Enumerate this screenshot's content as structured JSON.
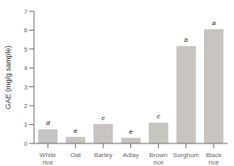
{
  "chart_data": {
    "type": "bar",
    "categories": [
      "White rice",
      "Oat",
      "Barley",
      "Adlay",
      "Brown rice",
      "Sorghum",
      "Black rice"
    ],
    "values": [
      0.75,
      0.35,
      1.02,
      0.3,
      1.1,
      5.15,
      6.05
    ],
    "annotations": [
      "d",
      "e",
      "c",
      "e",
      "c",
      "b",
      "a"
    ],
    "color": "#c8c4c0",
    "ylabel": "GAE (mg/g sample)",
    "ylim": [
      0,
      7
    ],
    "yticks": [
      0,
      1,
      2,
      3,
      4,
      5,
      6,
      7
    ],
    "grid": false
  }
}
